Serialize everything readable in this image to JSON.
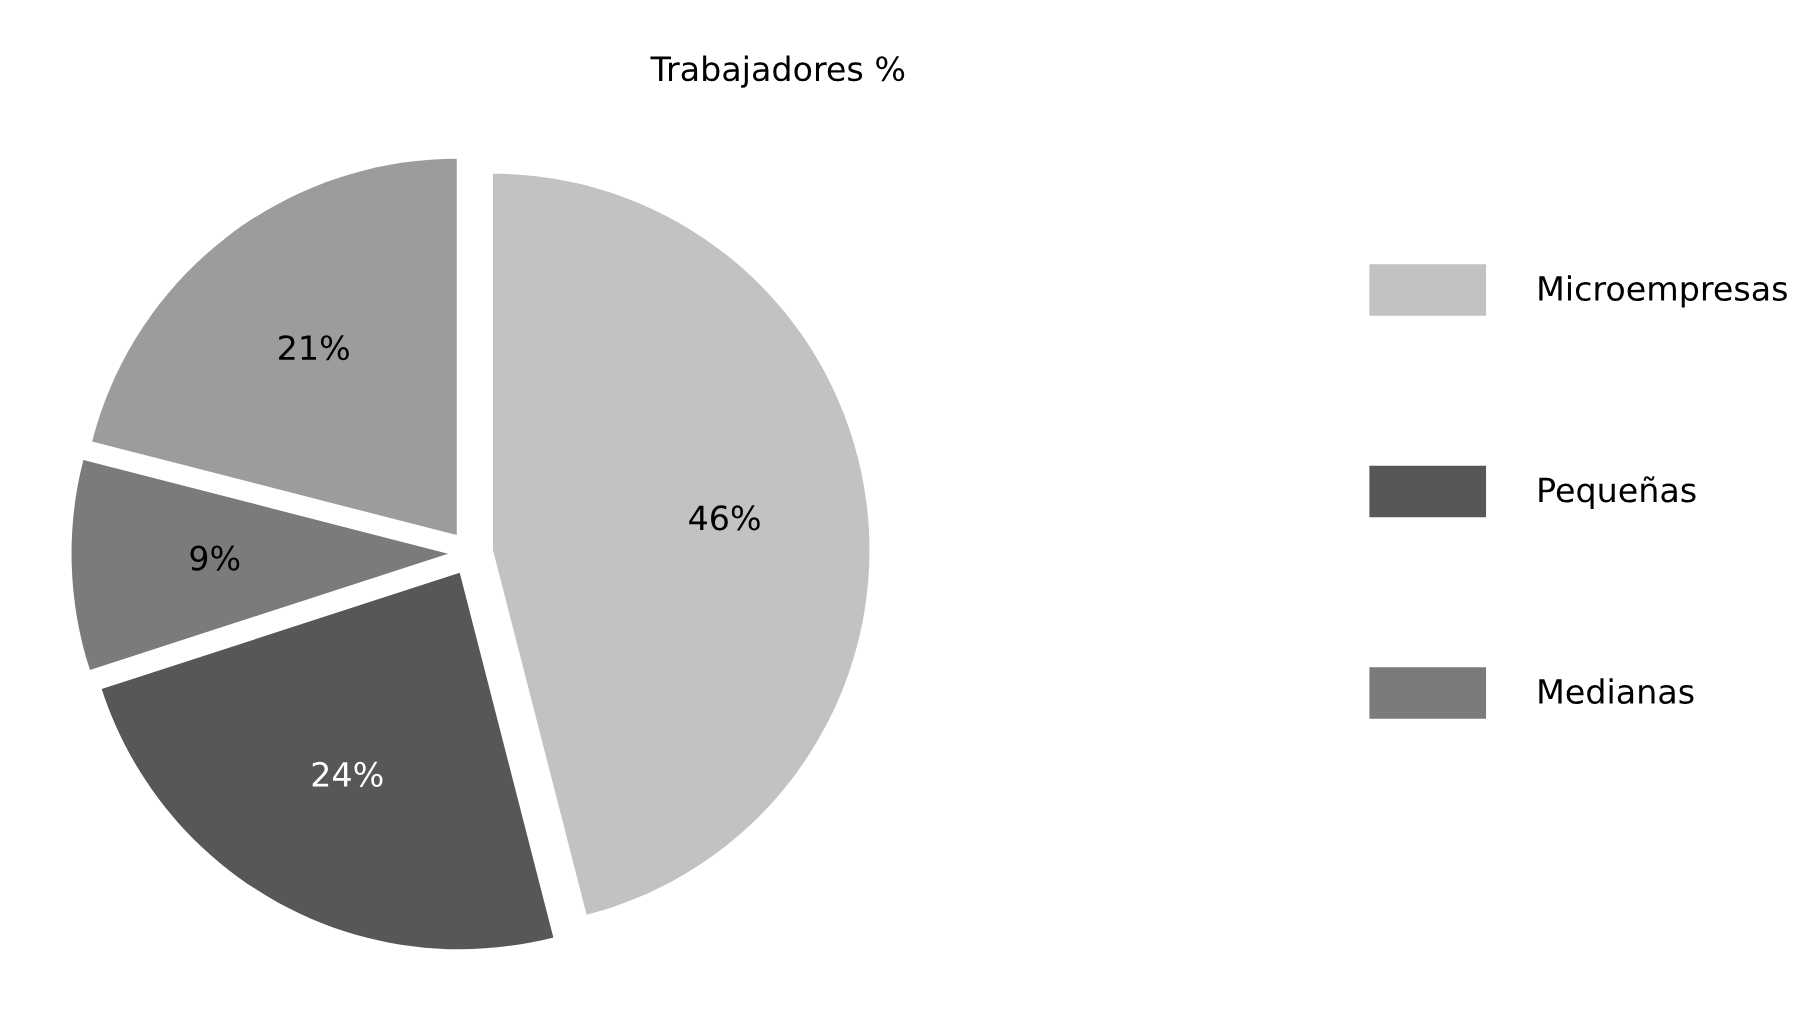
{
  "chart_data": {
    "type": "pie",
    "title": "Trabajadores %",
    "categories": [
      "Microempresas",
      "Pequeñas",
      "Medianas",
      null
    ],
    "values": [
      46,
      24,
      9,
      21
    ],
    "value_labels": [
      "46%",
      "24%",
      "9%",
      "21%"
    ],
    "colors": [
      "#c2c2c2",
      "#575757",
      "#7b7b7b",
      "#9c9c9c"
    ],
    "legend": "right"
  }
}
